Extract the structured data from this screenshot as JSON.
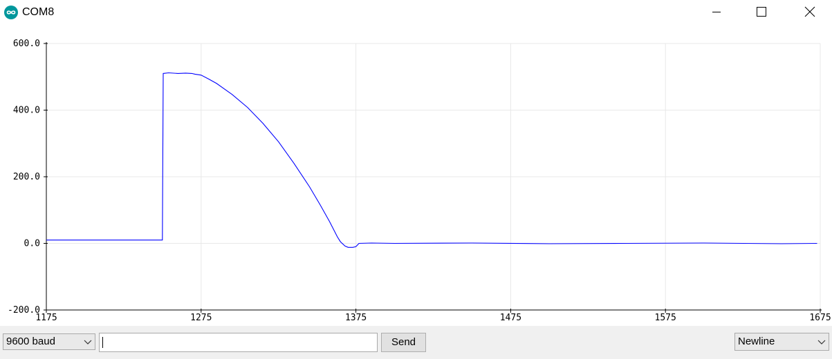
{
  "window": {
    "title": "COM8",
    "icon": "arduino-infinity-icon",
    "accent": "#00979c",
    "controls": [
      "minimize-icon",
      "maximize-icon",
      "close-icon"
    ]
  },
  "chart_data": {
    "type": "line",
    "title": "",
    "xlabel": "",
    "ylabel": "",
    "xlim": [
      1175,
      1675
    ],
    "ylim": [
      -200,
      600
    ],
    "x_ticks": [
      "1175",
      "1275",
      "1375",
      "1475",
      "1575",
      "1675"
    ],
    "y_ticks": [
      "600.0",
      "400.0",
      "200.0",
      "0.0",
      "-200.0"
    ],
    "y_tick_values": [
      600,
      400,
      200,
      0,
      -200
    ],
    "x_tick_values": [
      1175,
      1275,
      1375,
      1475,
      1575,
      1675
    ],
    "grid": true,
    "series": [
      {
        "color": "#0000ff",
        "x": [
          1175,
          1250,
          1250.5,
          1254,
          1260,
          1265,
          1269,
          1271,
          1275,
          1280,
          1285,
          1295,
          1305,
          1315,
          1325,
          1335,
          1345,
          1352,
          1358,
          1363,
          1365,
          1368,
          1370,
          1373,
          1375,
          1377,
          1385,
          1400,
          1450,
          1500,
          1550,
          1600,
          1650,
          1673
        ],
        "y": [
          10,
          10,
          510,
          512,
          510,
          511,
          510,
          508,
          505,
          493,
          480,
          447,
          408,
          360,
          305,
          240,
          170,
          115,
          65,
          20,
          5,
          -8,
          -12,
          -12,
          -10,
          0,
          1,
          0,
          1,
          -1,
          0,
          1,
          -1,
          0
        ]
      }
    ]
  },
  "bottombar": {
    "baud_select": {
      "value": "9600 baud"
    },
    "message_input": {
      "value": ""
    },
    "send_label": "Send",
    "line_ending_select": {
      "value": "Newline"
    }
  }
}
